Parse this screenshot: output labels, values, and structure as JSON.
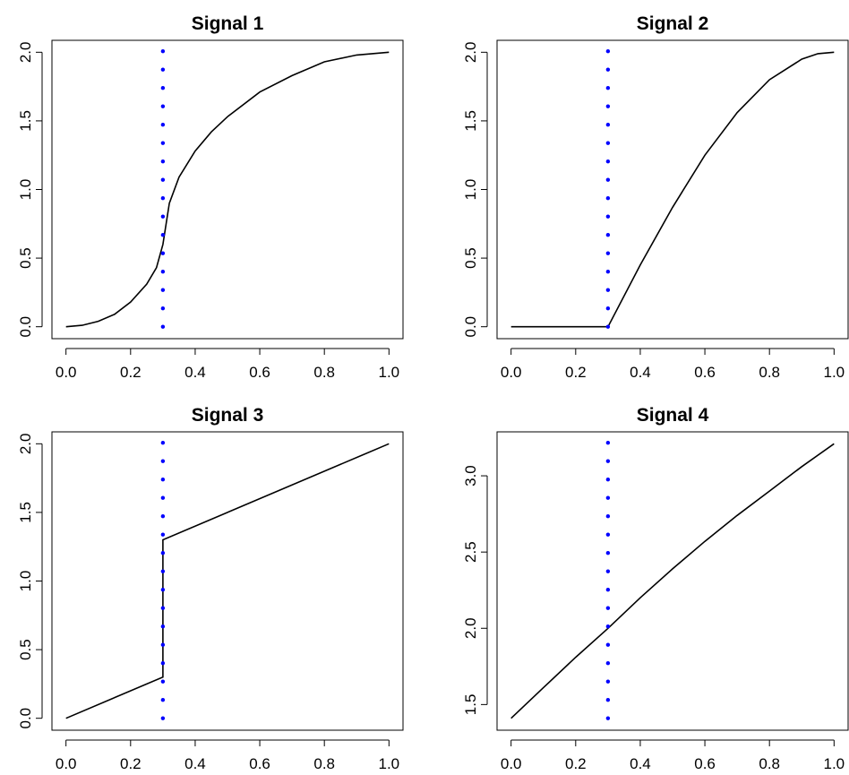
{
  "chart_data": [
    {
      "type": "line",
      "title": "Signal 1",
      "xlabel": "",
      "ylabel": "",
      "xlim": [
        0,
        1
      ],
      "ylim": [
        0,
        2
      ],
      "xticks": [
        "0.0",
        "0.2",
        "0.4",
        "0.6",
        "0.8",
        "1.0"
      ],
      "yticks": [
        "0.0",
        "0.5",
        "1.0",
        "1.5",
        "2.0"
      ],
      "reference_line": {
        "x": 0.3,
        "style": "dotted",
        "color": "#0000ff"
      },
      "series": [
        {
          "color": "#000000",
          "x": [
            0.0,
            0.05,
            0.1,
            0.15,
            0.2,
            0.25,
            0.28,
            0.3,
            0.32,
            0.35,
            0.4,
            0.45,
            0.5,
            0.6,
            0.7,
            0.8,
            0.9,
            1.0
          ],
          "y": [
            0.0,
            0.01,
            0.04,
            0.09,
            0.18,
            0.31,
            0.43,
            0.6,
            0.9,
            1.09,
            1.28,
            1.42,
            1.53,
            1.71,
            1.83,
            1.93,
            1.98,
            2.0
          ]
        }
      ]
    },
    {
      "type": "line",
      "title": "Signal 2",
      "xlabel": "",
      "ylabel": "",
      "xlim": [
        0,
        1
      ],
      "ylim": [
        0,
        2
      ],
      "xticks": [
        "0.0",
        "0.2",
        "0.4",
        "0.6",
        "0.8",
        "1.0"
      ],
      "yticks": [
        "0.0",
        "0.5",
        "1.0",
        "1.5",
        "2.0"
      ],
      "reference_line": {
        "x": 0.3,
        "style": "dotted",
        "color": "#0000ff"
      },
      "series": [
        {
          "color": "#000000",
          "x": [
            0.0,
            0.3,
            0.4,
            0.5,
            0.6,
            0.7,
            0.8,
            0.9,
            0.95,
            1.0
          ],
          "y": [
            0.0,
            0.0,
            0.45,
            0.87,
            1.25,
            1.56,
            1.8,
            1.95,
            1.99,
            2.0
          ]
        }
      ]
    },
    {
      "type": "line",
      "title": "Signal 3",
      "xlabel": "",
      "ylabel": "",
      "xlim": [
        0,
        1
      ],
      "ylim": [
        0,
        2
      ],
      "xticks": [
        "0.0",
        "0.2",
        "0.4",
        "0.6",
        "0.8",
        "1.0"
      ],
      "yticks": [
        "0.0",
        "0.5",
        "1.0",
        "1.5",
        "2.0"
      ],
      "reference_line": {
        "x": 0.3,
        "style": "dotted",
        "color": "#0000ff"
      },
      "series": [
        {
          "color": "#000000",
          "x": [
            0.0,
            0.3,
            0.3,
            1.0
          ],
          "y": [
            0.0,
            0.3,
            1.3,
            2.0
          ]
        }
      ]
    },
    {
      "type": "line",
      "title": "Signal 4",
      "xlabel": "",
      "ylabel": "",
      "xlim": [
        0,
        1
      ],
      "ylim": [
        1.41,
        3.21
      ],
      "xticks": [
        "0.0",
        "0.2",
        "0.4",
        "0.6",
        "0.8",
        "1.0"
      ],
      "yticks": [
        "1.5",
        "2.0",
        "2.5",
        "3.0"
      ],
      "reference_line": {
        "x": 0.3,
        "style": "dotted",
        "color": "#0000ff"
      },
      "series": [
        {
          "color": "#000000",
          "x": [
            0.0,
            0.1,
            0.2,
            0.3,
            0.4,
            0.5,
            0.6,
            0.7,
            0.8,
            0.9,
            1.0
          ],
          "y": [
            1.41,
            1.61,
            1.81,
            2.0,
            2.2,
            2.39,
            2.57,
            2.74,
            2.9,
            3.06,
            3.21
          ]
        }
      ]
    }
  ]
}
